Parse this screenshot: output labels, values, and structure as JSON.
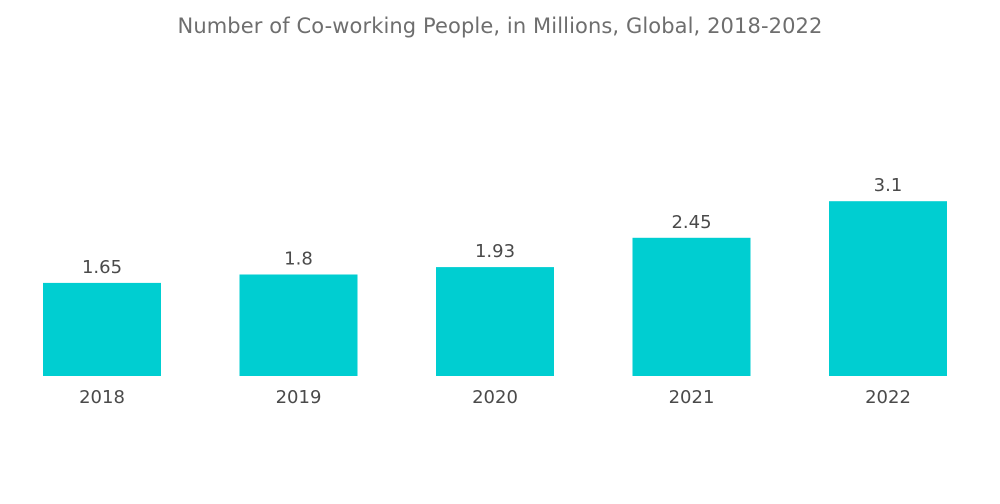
{
  "chart_data": {
    "type": "bar",
    "title": "Number of Co-working People, in Millions, Global, 2018-2022",
    "xlabel": "",
    "ylabel": "",
    "categories": [
      "2018",
      "2019",
      "2020",
      "2021",
      "2022"
    ],
    "values": [
      1.65,
      1.8,
      1.93,
      2.45,
      3.1
    ],
    "data_labels": [
      "1.65",
      "1.8",
      "1.93",
      "2.45",
      "3.1"
    ],
    "ylim": [
      0,
      3.4
    ],
    "grid": false,
    "legend": "none",
    "bar_color": "#00CED1"
  }
}
